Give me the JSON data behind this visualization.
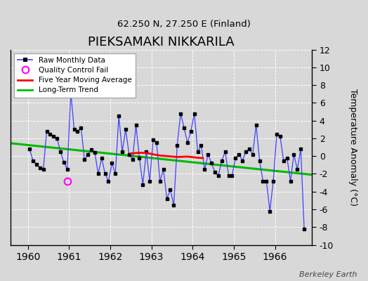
{
  "title": "PIEKSAMAKI NIKKARILA",
  "subtitle": "62.250 N, 27.250 E (Finland)",
  "ylabel": "Temperature Anomaly (°C)",
  "credit": "Berkeley Earth",
  "xlim": [
    1959.58,
    1966.9
  ],
  "ylim": [
    -10,
    12
  ],
  "yticks": [
    -10,
    -8,
    -6,
    -4,
    -2,
    0,
    2,
    4,
    6,
    8,
    10,
    12
  ],
  "xticks": [
    1960,
    1961,
    1962,
    1963,
    1964,
    1965,
    1966
  ],
  "bg_color": "#d8d8d8",
  "plot_bg_color": "#d8d8d8",
  "grid_color": "#ffffff",
  "raw_color": "#4040ff",
  "marker_color": "#000000",
  "ma_color": "#ff0000",
  "trend_color": "#00bb00",
  "qc_color": "#ff00ff",
  "raw_data": [
    1960.042,
    0.8,
    1960.125,
    -0.5,
    1960.208,
    -0.9,
    1960.292,
    -1.3,
    1960.375,
    -1.5,
    1960.458,
    2.8,
    1960.542,
    2.5,
    1960.625,
    2.2,
    1960.708,
    2.0,
    1960.792,
    0.5,
    1960.875,
    -0.7,
    1960.958,
    -1.5,
    1961.042,
    7.2,
    1961.125,
    3.0,
    1961.208,
    2.8,
    1961.292,
    3.2,
    1961.375,
    -0.4,
    1961.458,
    0.2,
    1961.542,
    0.7,
    1961.625,
    0.4,
    1961.708,
    -2.0,
    1961.792,
    -0.2,
    1961.875,
    -2.0,
    1961.958,
    -2.8,
    1962.042,
    -0.8,
    1962.125,
    -2.0,
    1962.208,
    4.5,
    1962.292,
    0.5,
    1962.375,
    3.0,
    1962.458,
    0.2,
    1962.542,
    -0.4,
    1962.625,
    3.5,
    1962.708,
    -0.2,
    1962.792,
    -3.2,
    1962.875,
    0.5,
    1962.958,
    -2.8,
    1963.042,
    1.8,
    1963.125,
    1.5,
    1963.208,
    -2.8,
    1963.292,
    -1.5,
    1963.375,
    -4.8,
    1963.458,
    -3.8,
    1963.542,
    -5.5,
    1963.625,
    1.2,
    1963.708,
    4.8,
    1963.792,
    3.2,
    1963.875,
    1.5,
    1963.958,
    2.8,
    1964.042,
    4.8,
    1964.125,
    0.5,
    1964.208,
    1.2,
    1964.292,
    -1.5,
    1964.375,
    0.2,
    1964.458,
    -0.8,
    1964.542,
    -1.8,
    1964.625,
    -2.2,
    1964.708,
    -0.5,
    1964.792,
    0.5,
    1964.875,
    -2.2,
    1964.958,
    -2.2,
    1965.042,
    -0.2,
    1965.125,
    0.2,
    1965.208,
    -0.5,
    1965.292,
    0.5,
    1965.375,
    0.8,
    1965.458,
    0.2,
    1965.542,
    3.5,
    1965.625,
    -0.5,
    1965.708,
    -2.8,
    1965.792,
    -2.8,
    1965.875,
    -6.2,
    1965.958,
    -2.8,
    1966.042,
    2.5,
    1966.125,
    2.2,
    1966.208,
    -0.5,
    1966.292,
    -0.2,
    1966.375,
    -2.8,
    1966.458,
    0.2,
    1966.542,
    -1.5,
    1966.625,
    0.8,
    1966.708,
    -8.2
  ],
  "qc_x": 1960.958,
  "qc_y": -2.8,
  "ma_x": [
    1962.5,
    1962.625,
    1962.75,
    1962.875,
    1963.0,
    1963.125,
    1963.25,
    1963.375,
    1963.5,
    1963.625,
    1963.75,
    1963.875,
    1964.0,
    1964.125,
    1964.25
  ],
  "ma_y": [
    0.3,
    0.35,
    0.38,
    0.34,
    0.25,
    0.12,
    0.05,
    0.0,
    -0.05,
    -0.1,
    -0.08,
    -0.05,
    -0.12,
    -0.18,
    -0.22
  ],
  "trend_x": [
    1959.58,
    1966.9
  ],
  "trend_y": [
    1.45,
    -2.1
  ]
}
